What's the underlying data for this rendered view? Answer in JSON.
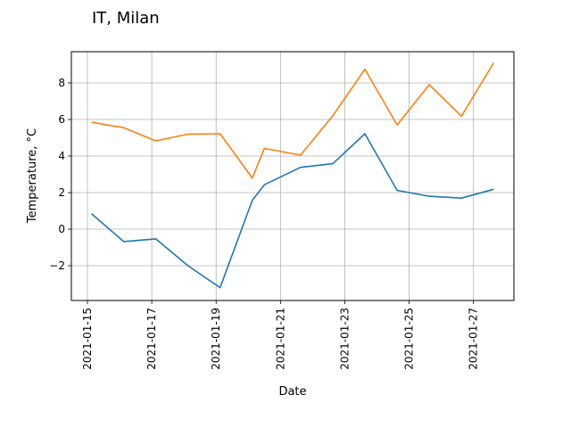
{
  "chart_data": {
    "type": "line",
    "title": "IT, Milan",
    "xlabel": "Date",
    "ylabel": "Temperature, °C",
    "x": [
      "2021-01-15",
      "2021-01-16",
      "2021-01-17",
      "2021-01-18",
      "2021-01-19",
      "2021-01-20",
      "2021-01-20T12:00",
      "2021-01-21",
      "2021-01-22",
      "2021-01-23",
      "2021-01-24",
      "2021-01-25",
      "2021-01-26",
      "2021-01-27"
    ],
    "x_ticks": [
      "2021-01-15",
      "2021-01-17",
      "2021-01-19",
      "2021-01-21",
      "2021-01-23",
      "2021-01-25",
      "2021-01-27"
    ],
    "y_ticks": [
      -2,
      0,
      2,
      4,
      6,
      8
    ],
    "ylim": [
      -3.9,
      9.7
    ],
    "grid": true,
    "series": [
      {
        "color": "#1f77b4",
        "points": [
          [
            "2021-01-15T03:00",
            0.85
          ],
          [
            "2021-01-16T03:00",
            -0.68
          ],
          [
            "2021-01-17T03:00",
            -0.53
          ],
          [
            "2021-01-18T03:00",
            -2.0
          ],
          [
            "2021-01-19T03:00",
            -3.2
          ],
          [
            "2021-01-20T03:00",
            1.58
          ],
          [
            "2021-01-20T12:00",
            2.43
          ],
          [
            "2021-01-21T15:00",
            3.38
          ],
          [
            "2021-01-22T15:00",
            3.58
          ],
          [
            "2021-01-23T15:00",
            5.22
          ],
          [
            "2021-01-24T15:00",
            2.12
          ],
          [
            "2021-01-25T15:00",
            1.8
          ],
          [
            "2021-01-26T15:00",
            1.7
          ],
          [
            "2021-01-27T15:00",
            2.18
          ]
        ]
      },
      {
        "color": "#ff7f0e",
        "points": [
          [
            "2021-01-15T03:00",
            5.85
          ],
          [
            "2021-01-16T03:00",
            5.55
          ],
          [
            "2021-01-17T03:00",
            4.83
          ],
          [
            "2021-01-18T03:00",
            5.2
          ],
          [
            "2021-01-19T03:00",
            5.22
          ],
          [
            "2021-01-20T03:00",
            2.8
          ],
          [
            "2021-01-20T12:00",
            4.42
          ],
          [
            "2021-01-21T15:00",
            4.05
          ],
          [
            "2021-01-22T15:00",
            6.2
          ],
          [
            "2021-01-23T15:00",
            8.75
          ],
          [
            "2021-01-24T15:00",
            5.7
          ],
          [
            "2021-01-25T15:00",
            7.9
          ],
          [
            "2021-01-26T15:00",
            6.18
          ],
          [
            "2021-01-27T15:00",
            9.1
          ]
        ]
      }
    ]
  }
}
